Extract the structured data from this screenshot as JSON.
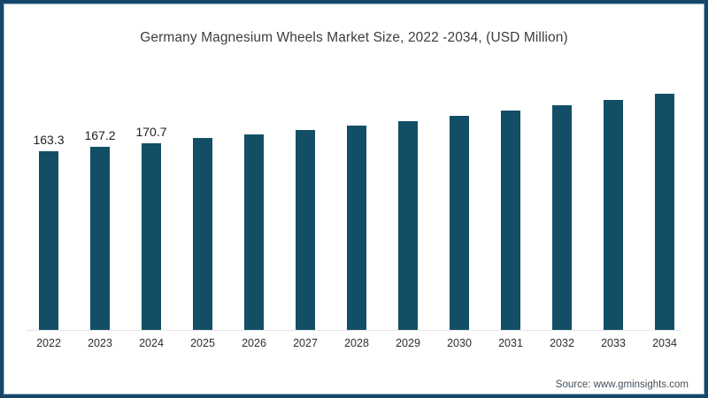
{
  "page": {
    "title": "Germany Magnesium Wheels Market Size, 2022 -2034, (USD Million)",
    "source": "Source: www.gminsights.com"
  },
  "colors": {
    "bar": "#124f66",
    "frame_border": "#16476b",
    "baseline": "#e4e4e4",
    "title_text": "#3d3d3d"
  },
  "chart_data": {
    "type": "bar",
    "title": "Germany Magnesium Wheels Market Size, 2022 -2034, (USD Million)",
    "unit": "USD Million",
    "categories": [
      "2022",
      "2023",
      "2024",
      "2025",
      "2026",
      "2027",
      "2028",
      "2029",
      "2030",
      "2031",
      "2032",
      "2033",
      "2034"
    ],
    "values": [
      163.3,
      167.2,
      170.7,
      175.0,
      178.6,
      182.5,
      186.5,
      191.0,
      195.8,
      200.5,
      205.2,
      210.3,
      215.5
    ],
    "data_labels": [
      "163.3",
      "167.2",
      "170.7",
      "",
      "",
      "",
      "",
      "",
      "",
      "",
      "",
      "",
      ""
    ],
    "xlabel": "",
    "ylabel": "",
    "ylim": [
      0,
      230
    ],
    "grid": false,
    "legend": false,
    "source": "Source: www.gminsights.com"
  }
}
